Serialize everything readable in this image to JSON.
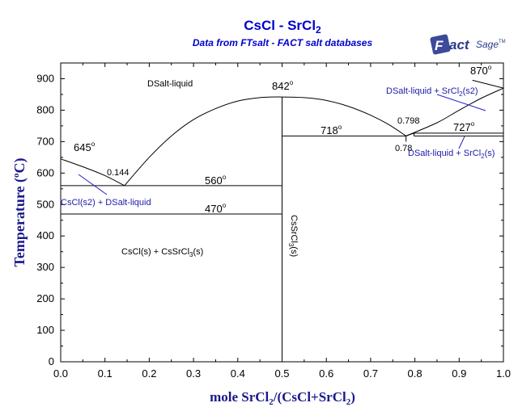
{
  "title": {
    "main": "CsCl - SrCl",
    "sub2": "2",
    "subtitle": "Data from FTsalt - FACT salt databases"
  },
  "logo": {
    "word": "FactSage",
    "tm": "TM"
  },
  "axes": {
    "ylabel": "Temperature (°C)",
    "ylabel_main": "Temperature (",
    "ylabel_deg": "o",
    "ylabel_end": "C)",
    "xlabel_main": "mole SrCl",
    "xlabel_sub1": "2",
    "xlabel_mid": "/(CsCl+SrCl",
    "xlabel_sub2": "2",
    "xlabel_end": ")"
  },
  "chart_data": {
    "type": "line",
    "title": "CsCl - SrCl2",
    "subtitle": "Data from FTsalt - FACT salt databases",
    "xlabel": "mole SrCl2/(CsCl+SrCl2)",
    "ylabel": "Temperature (°C)",
    "xlim": [
      0,
      1
    ],
    "ylim": [
      0,
      950
    ],
    "x_ticks": [
      "0.0",
      "0.1",
      "0.2",
      "0.3",
      "0.4",
      "0.5",
      "0.6",
      "0.7",
      "0.8",
      "0.9",
      "1.0"
    ],
    "y_ticks": [
      "0",
      "100",
      "200",
      "300",
      "400",
      "500",
      "600",
      "700",
      "800",
      "900"
    ],
    "series": [
      {
        "name": "liquidus-cscl",
        "points": [
          [
            0,
            645
          ],
          [
            0.05,
            620
          ],
          [
            0.1,
            592
          ],
          [
            0.144,
            560
          ]
        ]
      },
      {
        "name": "liquidus-cssrcl3",
        "points": [
          [
            0.144,
            560
          ],
          [
            0.2,
            650
          ],
          [
            0.25,
            718
          ],
          [
            0.3,
            770
          ],
          [
            0.35,
            805
          ],
          [
            0.4,
            829
          ],
          [
            0.45,
            840
          ],
          [
            0.5,
            842
          ],
          [
            0.55,
            840
          ],
          [
            0.6,
            831
          ],
          [
            0.65,
            812
          ],
          [
            0.7,
            784
          ],
          [
            0.74,
            755
          ],
          [
            0.78,
            718
          ]
        ]
      },
      {
        "name": "liquidus-srcl2",
        "points": [
          [
            0.78,
            718
          ],
          [
            0.85,
            760
          ],
          [
            0.9,
            800
          ],
          [
            0.95,
            838
          ],
          [
            1.0,
            870
          ]
        ]
      },
      {
        "name": "srcl2-transition-boundary",
        "points": [
          [
            0.93,
            895
          ],
          [
            1.0,
            870
          ]
        ]
      },
      {
        "name": "transition-branch",
        "points": [
          [
            0.78,
            718
          ],
          [
            0.798,
            727
          ]
        ]
      }
    ],
    "isotherms": [
      {
        "label": "560",
        "t": 560,
        "x_from": 0,
        "x_to": 0.5
      },
      {
        "label": "470",
        "t": 470,
        "x_from": 0,
        "x_to": 0.5
      },
      {
        "label": "718",
        "t": 718,
        "x_from": 0.5,
        "x_to": 0.78
      },
      {
        "label": "727",
        "t": 727,
        "x_from": 0.798,
        "x_to": 1.0
      },
      {
        "label": "727-low",
        "t": 718,
        "x_from": 0.798,
        "x_to": 1.0
      }
    ],
    "compound_line": {
      "x": 0.5,
      "from": 0,
      "to": 842
    },
    "special_points": [
      {
        "label": "645",
        "x": 0,
        "t": 645
      },
      {
        "label": "842",
        "x": 0.5,
        "t": 842
      },
      {
        "label": "870",
        "x": 1.0,
        "t": 870
      },
      {
        "label": "0.144",
        "x": 0.144,
        "t": 560
      },
      {
        "label": "0.798",
        "x": 0.798,
        "t": 727
      },
      {
        "label": "0.78",
        "x": 0.78,
        "t": 718
      }
    ],
    "grid": false
  },
  "labels": {
    "liquid": "DSalt-liquid",
    "t645": "645",
    "t842": "842",
    "t870": "870",
    "t718": "718",
    "t727": "727",
    "t560": "560",
    "t470": "470",
    "x0144": "0.144",
    "x0798": "0.798",
    "x078": "0.78",
    "deg": "o",
    "cscl_liq": "CsCl(s2) + DSalt-liquid",
    "cscl_cssrcl3_a": "CsCl(s) + CsSrCl",
    "cscl_cssrcl3_sub": "3",
    "cscl_cssrcl3_b": "(s)",
    "cssrcl3_a": "CsSrCl",
    "cssrcl3_sub": "3",
    "cssrcl3_b": "(s)",
    "liq_srcl2_top_a": "DSalt-liquid + SrCl",
    "liq_srcl2_top_sub": "2",
    "liq_srcl2_top_b": "(s2)",
    "liq_srcl2_bot_a": "DSalt-liquid + SrCl",
    "liq_srcl2_bot_sub": "2",
    "liq_srcl2_bot_b": "(s)"
  }
}
